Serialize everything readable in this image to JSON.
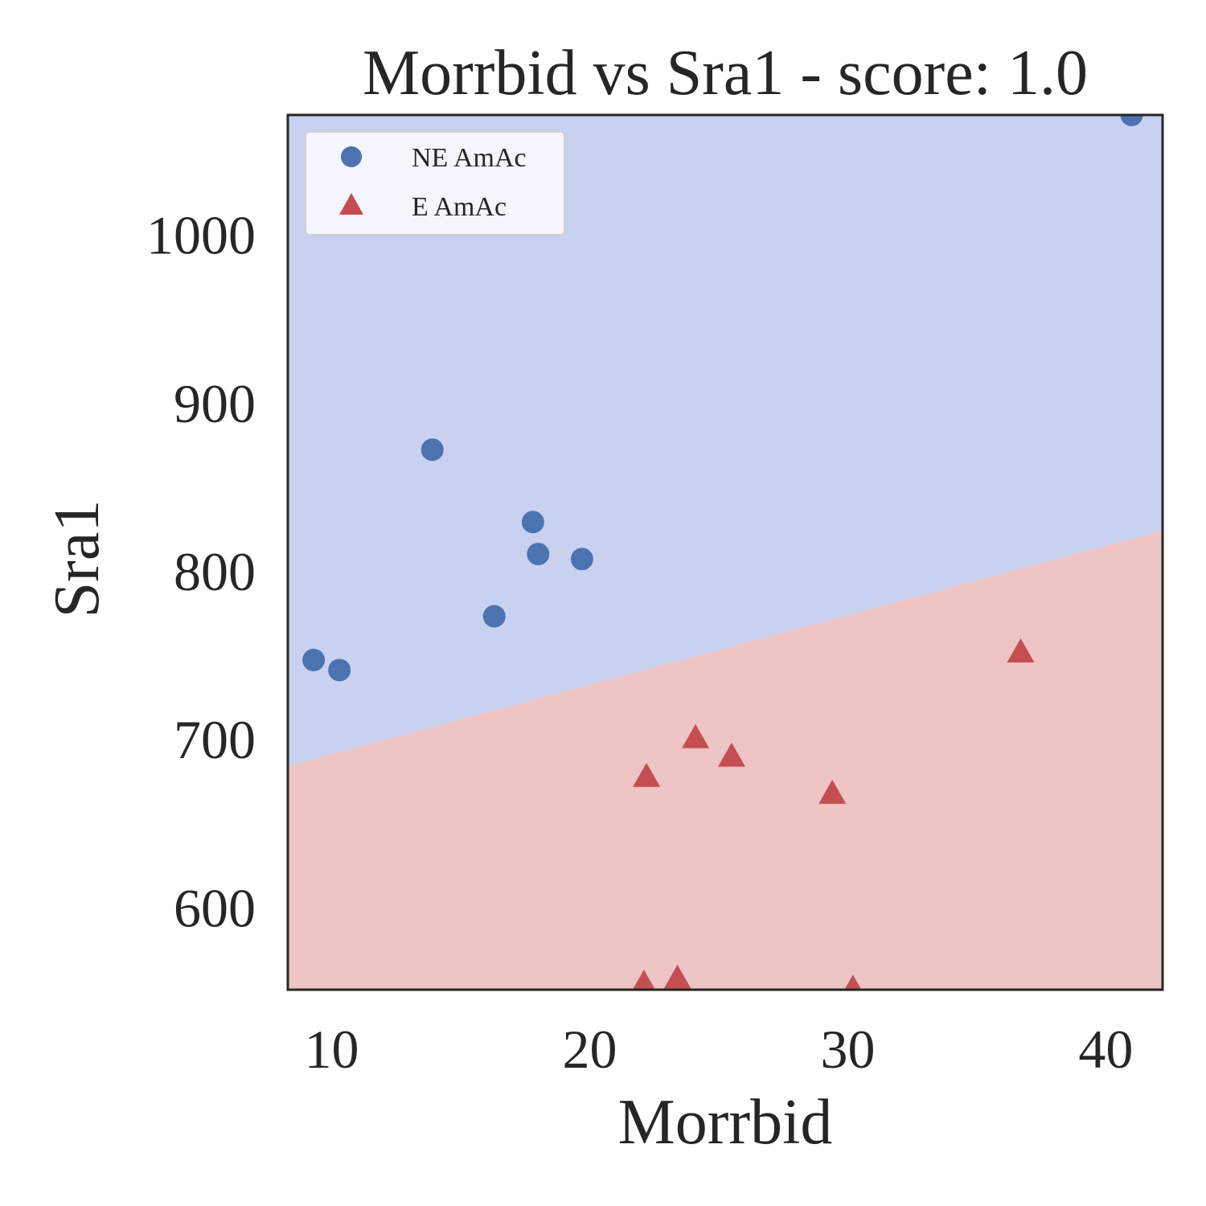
{
  "chart_data": {
    "type": "scatter",
    "title": "Morrbid vs Sra1 - score: 1.0",
    "xlabel": "Morrbid",
    "ylabel": "Sra1",
    "xlim": [
      8.3,
      42.2
    ],
    "ylim": [
      551,
      1071
    ],
    "xticks": [
      10,
      20,
      30,
      40
    ],
    "yticks": [
      600,
      700,
      800,
      900,
      1000
    ],
    "grid": false,
    "legend_position": "top-left",
    "decision_boundary": {
      "x": [
        8.3,
        42.2
      ],
      "y": [
        684,
        824
      ],
      "above_class": "NE AmAc",
      "below_class": "E AmAc"
    },
    "regions": {
      "above_color": "#c9d1f1",
      "below_color": "#eec4c4"
    },
    "series": [
      {
        "name": "NE AmAc",
        "marker": "circle",
        "color": "#4c72b0",
        "points": [
          [
            9.3,
            747
          ],
          [
            10.3,
            741
          ],
          [
            13.9,
            872
          ],
          [
            16.3,
            773
          ],
          [
            17.8,
            829
          ],
          [
            18.0,
            810
          ],
          [
            19.7,
            807
          ],
          [
            41.0,
            1071
          ]
        ]
      },
      {
        "name": "E AmAc",
        "marker": "triangle",
        "color": "#c44e52",
        "points": [
          [
            22.2,
            677
          ],
          [
            24.1,
            700
          ],
          [
            25.5,
            689
          ],
          [
            29.4,
            667
          ],
          [
            36.7,
            751
          ],
          [
            22.1,
            554
          ],
          [
            23.4,
            557
          ],
          [
            30.2,
            551
          ]
        ]
      }
    ]
  }
}
